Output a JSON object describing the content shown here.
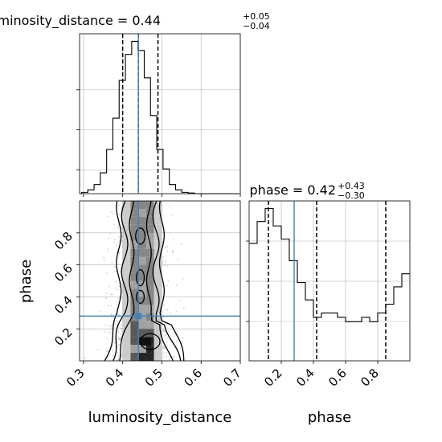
{
  "figure": {
    "type": "corner-plot",
    "parameters": [
      "luminosity_distance",
      "phase"
    ]
  },
  "colors": {
    "hist": "#000000",
    "quantile": "#000000",
    "truth": "#4682b4",
    "grid": "#b0b0b0",
    "density_dark": "#111111",
    "density_mid": "#7a7a7a",
    "density_light": "#c8c8c8"
  },
  "chart_data": [
    {
      "type": "histogram",
      "panel": "luminosity_distance marginal",
      "title": {
        "prefix": "luminosity_distance = 0.44",
        "plus": "+0.05",
        "minus": "−0.04"
      },
      "xlim": [
        0.29,
        0.7
      ],
      "x_ticks": [
        "0.3",
        "0.4",
        "0.5",
        "0.6",
        "0.7"
      ],
      "y_tick_labels_shown": false,
      "bin_edges": [
        0.295,
        0.311,
        0.327,
        0.343,
        0.359,
        0.375,
        0.391,
        0.407,
        0.423,
        0.439,
        0.455,
        0.471,
        0.487,
        0.503,
        0.519,
        0.535,
        0.551,
        0.567,
        0.583,
        0.599,
        0.615,
        0.631,
        0.647,
        0.663,
        0.679,
        0.695
      ],
      "counts": [
        1,
        3,
        7,
        16,
        34,
        58,
        87,
        107,
        117,
        110,
        89,
        60,
        34,
        19,
        7,
        3,
        1,
        0.5,
        0,
        0,
        0,
        0,
        0,
        0,
        0
      ],
      "quantiles": [
        0.4,
        0.44,
        0.49
      ],
      "truth": 0.44
    },
    {
      "type": "histogram",
      "panel": "phase marginal",
      "title": {
        "prefix": "phase = 0.42",
        "plus": "+0.43",
        "minus": "−0.30"
      },
      "xlim": [
        0.0,
        1.0
      ],
      "x_ticks": [
        "0.2",
        "0.4",
        "0.6",
        "0.8"
      ],
      "x_label": "phase",
      "y_tick_labels_shown": false,
      "bin_edges": [
        0.0,
        0.05,
        0.1,
        0.15,
        0.2,
        0.25,
        0.3,
        0.35,
        0.4,
        0.45,
        0.5,
        0.55,
        0.6,
        0.65,
        0.7,
        0.75,
        0.8,
        0.85,
        0.9,
        0.95,
        1.0
      ],
      "counts": [
        27,
        32,
        35,
        31,
        28,
        23,
        18,
        14,
        10,
        11,
        11,
        10,
        9,
        9,
        10,
        9,
        11,
        13,
        17,
        20
      ],
      "quantiles": [
        0.12,
        0.42,
        0.85
      ],
      "truth": 0.28
    },
    {
      "type": "2d-histogram",
      "panel": "phase vs luminosity_distance",
      "x_name": "luminosity_distance",
      "y_name": "phase",
      "xlim": [
        0.29,
        0.7
      ],
      "ylim": [
        0.0,
        1.0
      ],
      "x_ticks": [
        "0.3",
        "0.4",
        "0.5",
        "0.6",
        "0.7"
      ],
      "y_ticks": [
        "0.2",
        "0.4",
        "0.6",
        "0.8"
      ],
      "x_label": "luminosity_distance",
      "y_label": "phase",
      "truth": {
        "x": 0.44,
        "y": 0.28
      },
      "density_peak": {
        "x": 0.46,
        "y": 0.12
      }
    }
  ]
}
